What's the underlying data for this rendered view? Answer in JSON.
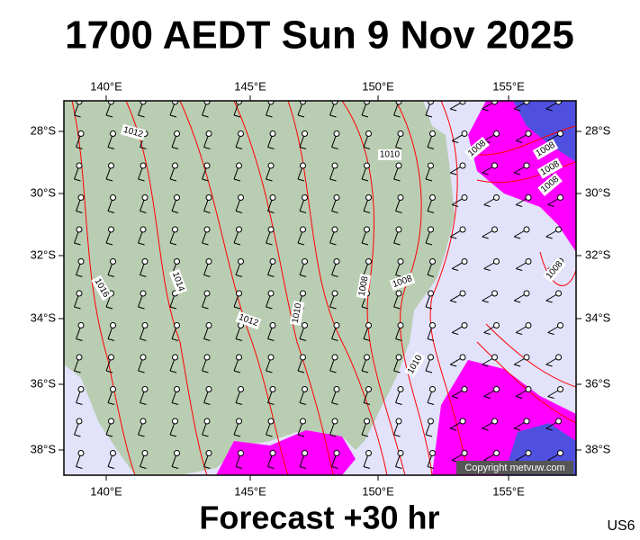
{
  "title": "1700 AEDT Sun 9 Nov 2025",
  "map": {
    "lon_labels": [
      "140°E",
      "145°E",
      "150°E",
      "155°E"
    ],
    "lat_labels": [
      "28°S",
      "30°S",
      "32°S",
      "34°S",
      "36°S",
      "38°S"
    ],
    "isobar_labels": [
      "1012",
      "1010",
      "1008",
      "1008",
      "1008",
      "1008",
      "1016",
      "1014",
      "1012",
      "1010",
      "1008",
      "1008",
      "1010",
      "1008"
    ],
    "copyright": "Copyright metvuw.com"
  },
  "footer": {
    "caption": "Forecast +30 hr",
    "code": "US6"
  }
}
